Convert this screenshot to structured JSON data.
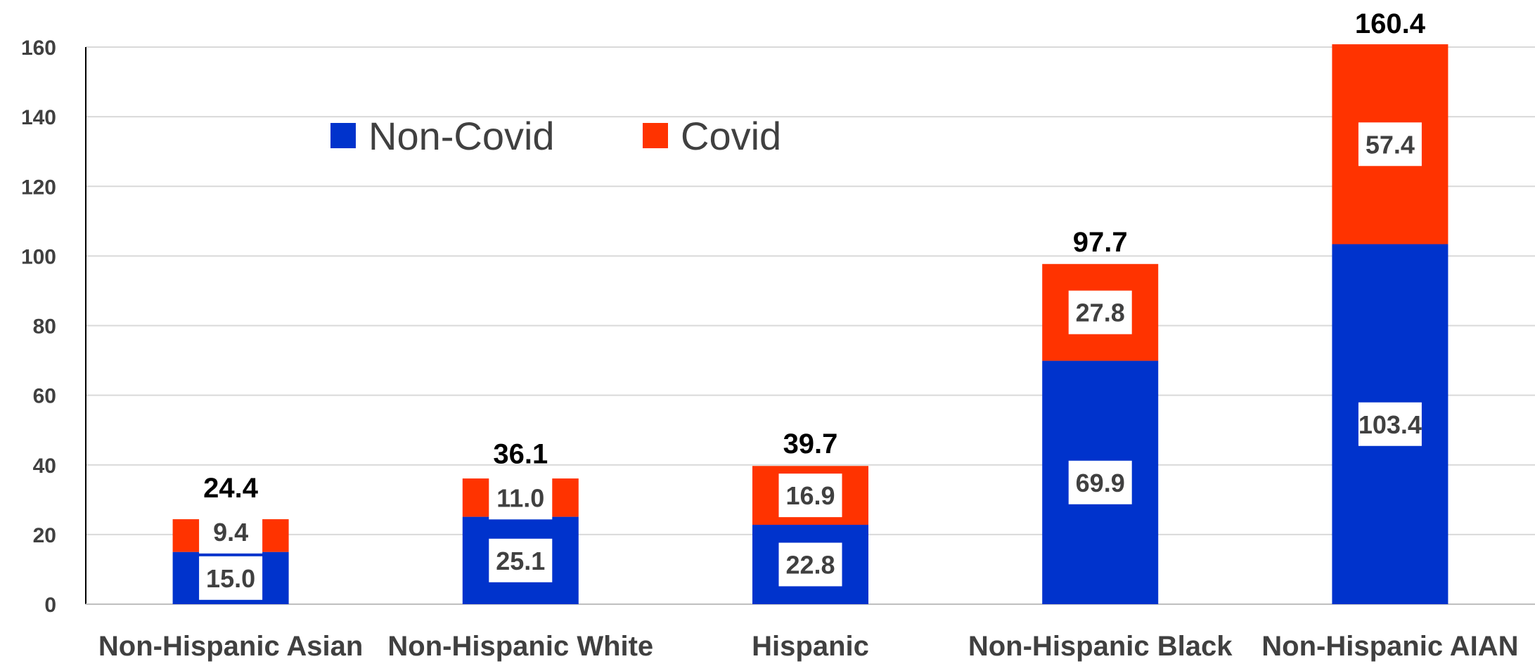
{
  "chart_data": {
    "type": "bar",
    "stacked": true,
    "categories": [
      "Non-Hispanic Asian",
      "Non-Hispanic White",
      "Hispanic",
      "Non-Hispanic Black",
      "Non-Hispanic AIAN"
    ],
    "series": [
      {
        "name": "Non-Covid",
        "color": "#0033CC",
        "values": [
          15.0,
          25.1,
          22.8,
          69.9,
          103.4
        ]
      },
      {
        "name": "Covid",
        "color": "#FF3300",
        "values": [
          9.4,
          11.0,
          16.9,
          27.8,
          57.4
        ]
      }
    ],
    "totals": [
      24.4,
      36.1,
      39.7,
      97.7,
      160.4
    ],
    "ylim": [
      0,
      160
    ],
    "yticks": [
      0,
      20,
      40,
      60,
      80,
      100,
      120,
      140,
      160
    ],
    "grid": true,
    "legend_position": "top-left",
    "title": "",
    "xlabel": "",
    "ylabel": ""
  }
}
